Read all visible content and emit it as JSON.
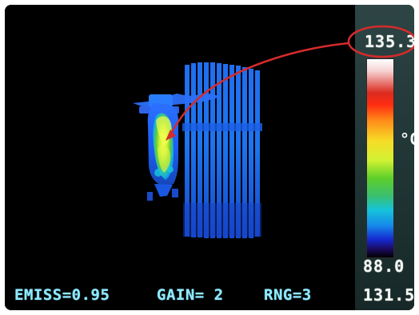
{
  "display": {
    "scale_max": "135.3",
    "unit": "°C",
    "scale_min": "88.0",
    "readout": "131.5"
  },
  "status": {
    "emissivity": "EMISS=0.95",
    "gain": "GAIN= 2",
    "range": "RNG=3"
  },
  "colors": {
    "background": "#000000",
    "status_text": "#8de9ff",
    "side_panel": "#243939",
    "annotation": "#d52b2b"
  }
}
